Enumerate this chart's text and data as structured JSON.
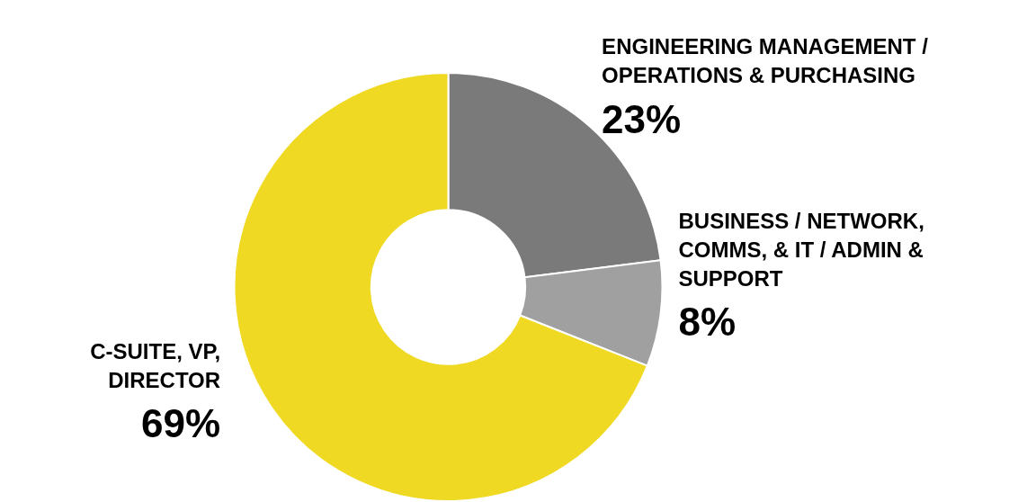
{
  "chart_data": {
    "type": "donut",
    "categories": [
      "ENGINEERING MANAGEMENT / OPERATIONS & PURCHASING",
      "BUSINESS / NETWORK, COMMS, & IT / ADMIN & SUPPORT",
      "C-SUITE, VP, DIRECTOR"
    ],
    "values": [
      23,
      8,
      69
    ],
    "value_labels": [
      "23%",
      "8%",
      "69%"
    ],
    "colors": [
      "#7a7a7a",
      "#a0a0a0",
      "#efd922"
    ]
  }
}
